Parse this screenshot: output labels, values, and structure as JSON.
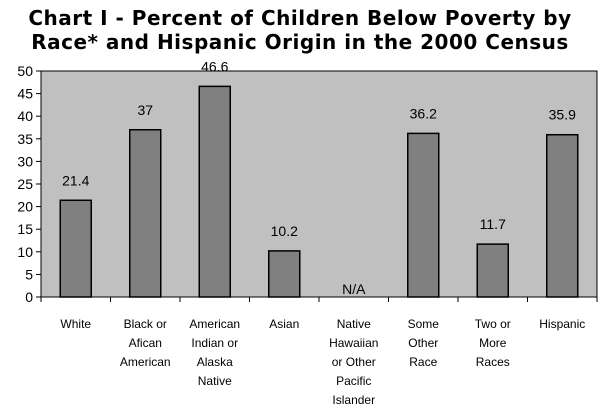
{
  "chart_data": {
    "type": "bar",
    "title": [
      "Chart I - Percent of Children Below Poverty by",
      "Race* and Hispanic Origin in the 2000 Census"
    ],
    "categories": [
      [
        "White"
      ],
      [
        "Black or",
        "Afican",
        "American"
      ],
      [
        "American",
        "Indian or",
        "Alaska",
        "Native"
      ],
      [
        "Asian"
      ],
      [
        "Native",
        "Hawaiian",
        "or Other",
        "Pacific",
        "Islander"
      ],
      [
        "Some",
        "Other",
        "Race"
      ],
      [
        "Two or",
        "More",
        "Races"
      ],
      [
        "Hispanic"
      ]
    ],
    "values": [
      21.4,
      37,
      46.6,
      10.2,
      null,
      36.2,
      11.7,
      35.9
    ],
    "data_labels": [
      "21.4",
      "37",
      "46.6",
      "10.2",
      "N/A",
      "36.2",
      "11.7",
      "35.9"
    ],
    "ylim": [
      0,
      50
    ],
    "yticks": [
      0,
      5,
      10,
      15,
      20,
      25,
      30,
      35,
      40,
      45,
      50
    ],
    "grid": false,
    "colors": {
      "plot_background": "#c0c0c0",
      "bar_fill": "#808080",
      "bar_stroke": "#000000"
    }
  }
}
